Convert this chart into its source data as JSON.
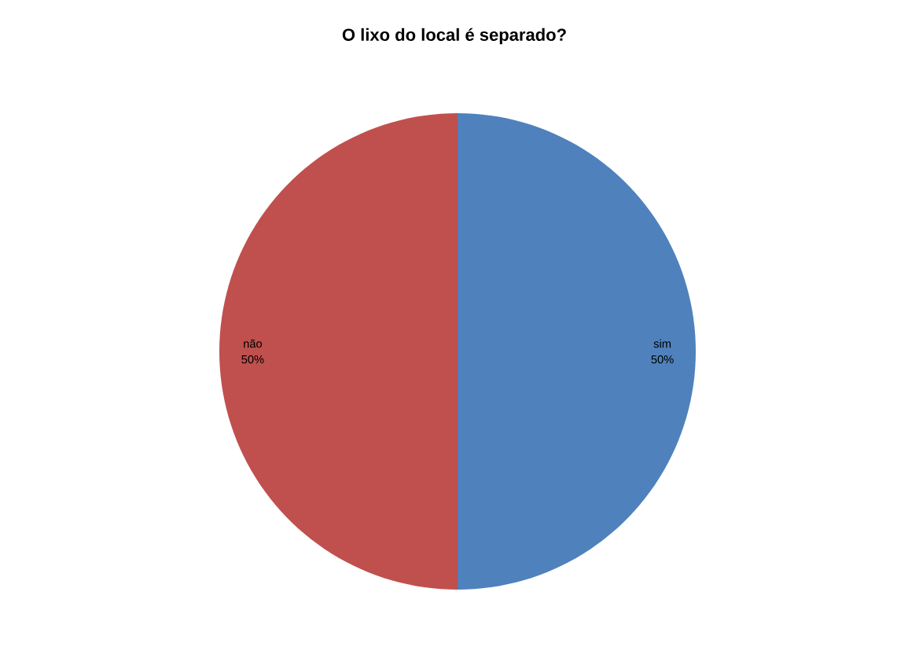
{
  "chart_data": {
    "type": "pie",
    "title": "O lixo do local é separado?",
    "categories": [
      "sim",
      "não"
    ],
    "values": [
      50,
      50
    ],
    "colors": [
      "#4f81bd",
      "#c0504d"
    ],
    "value_labels": [
      "50%",
      "50%"
    ]
  }
}
